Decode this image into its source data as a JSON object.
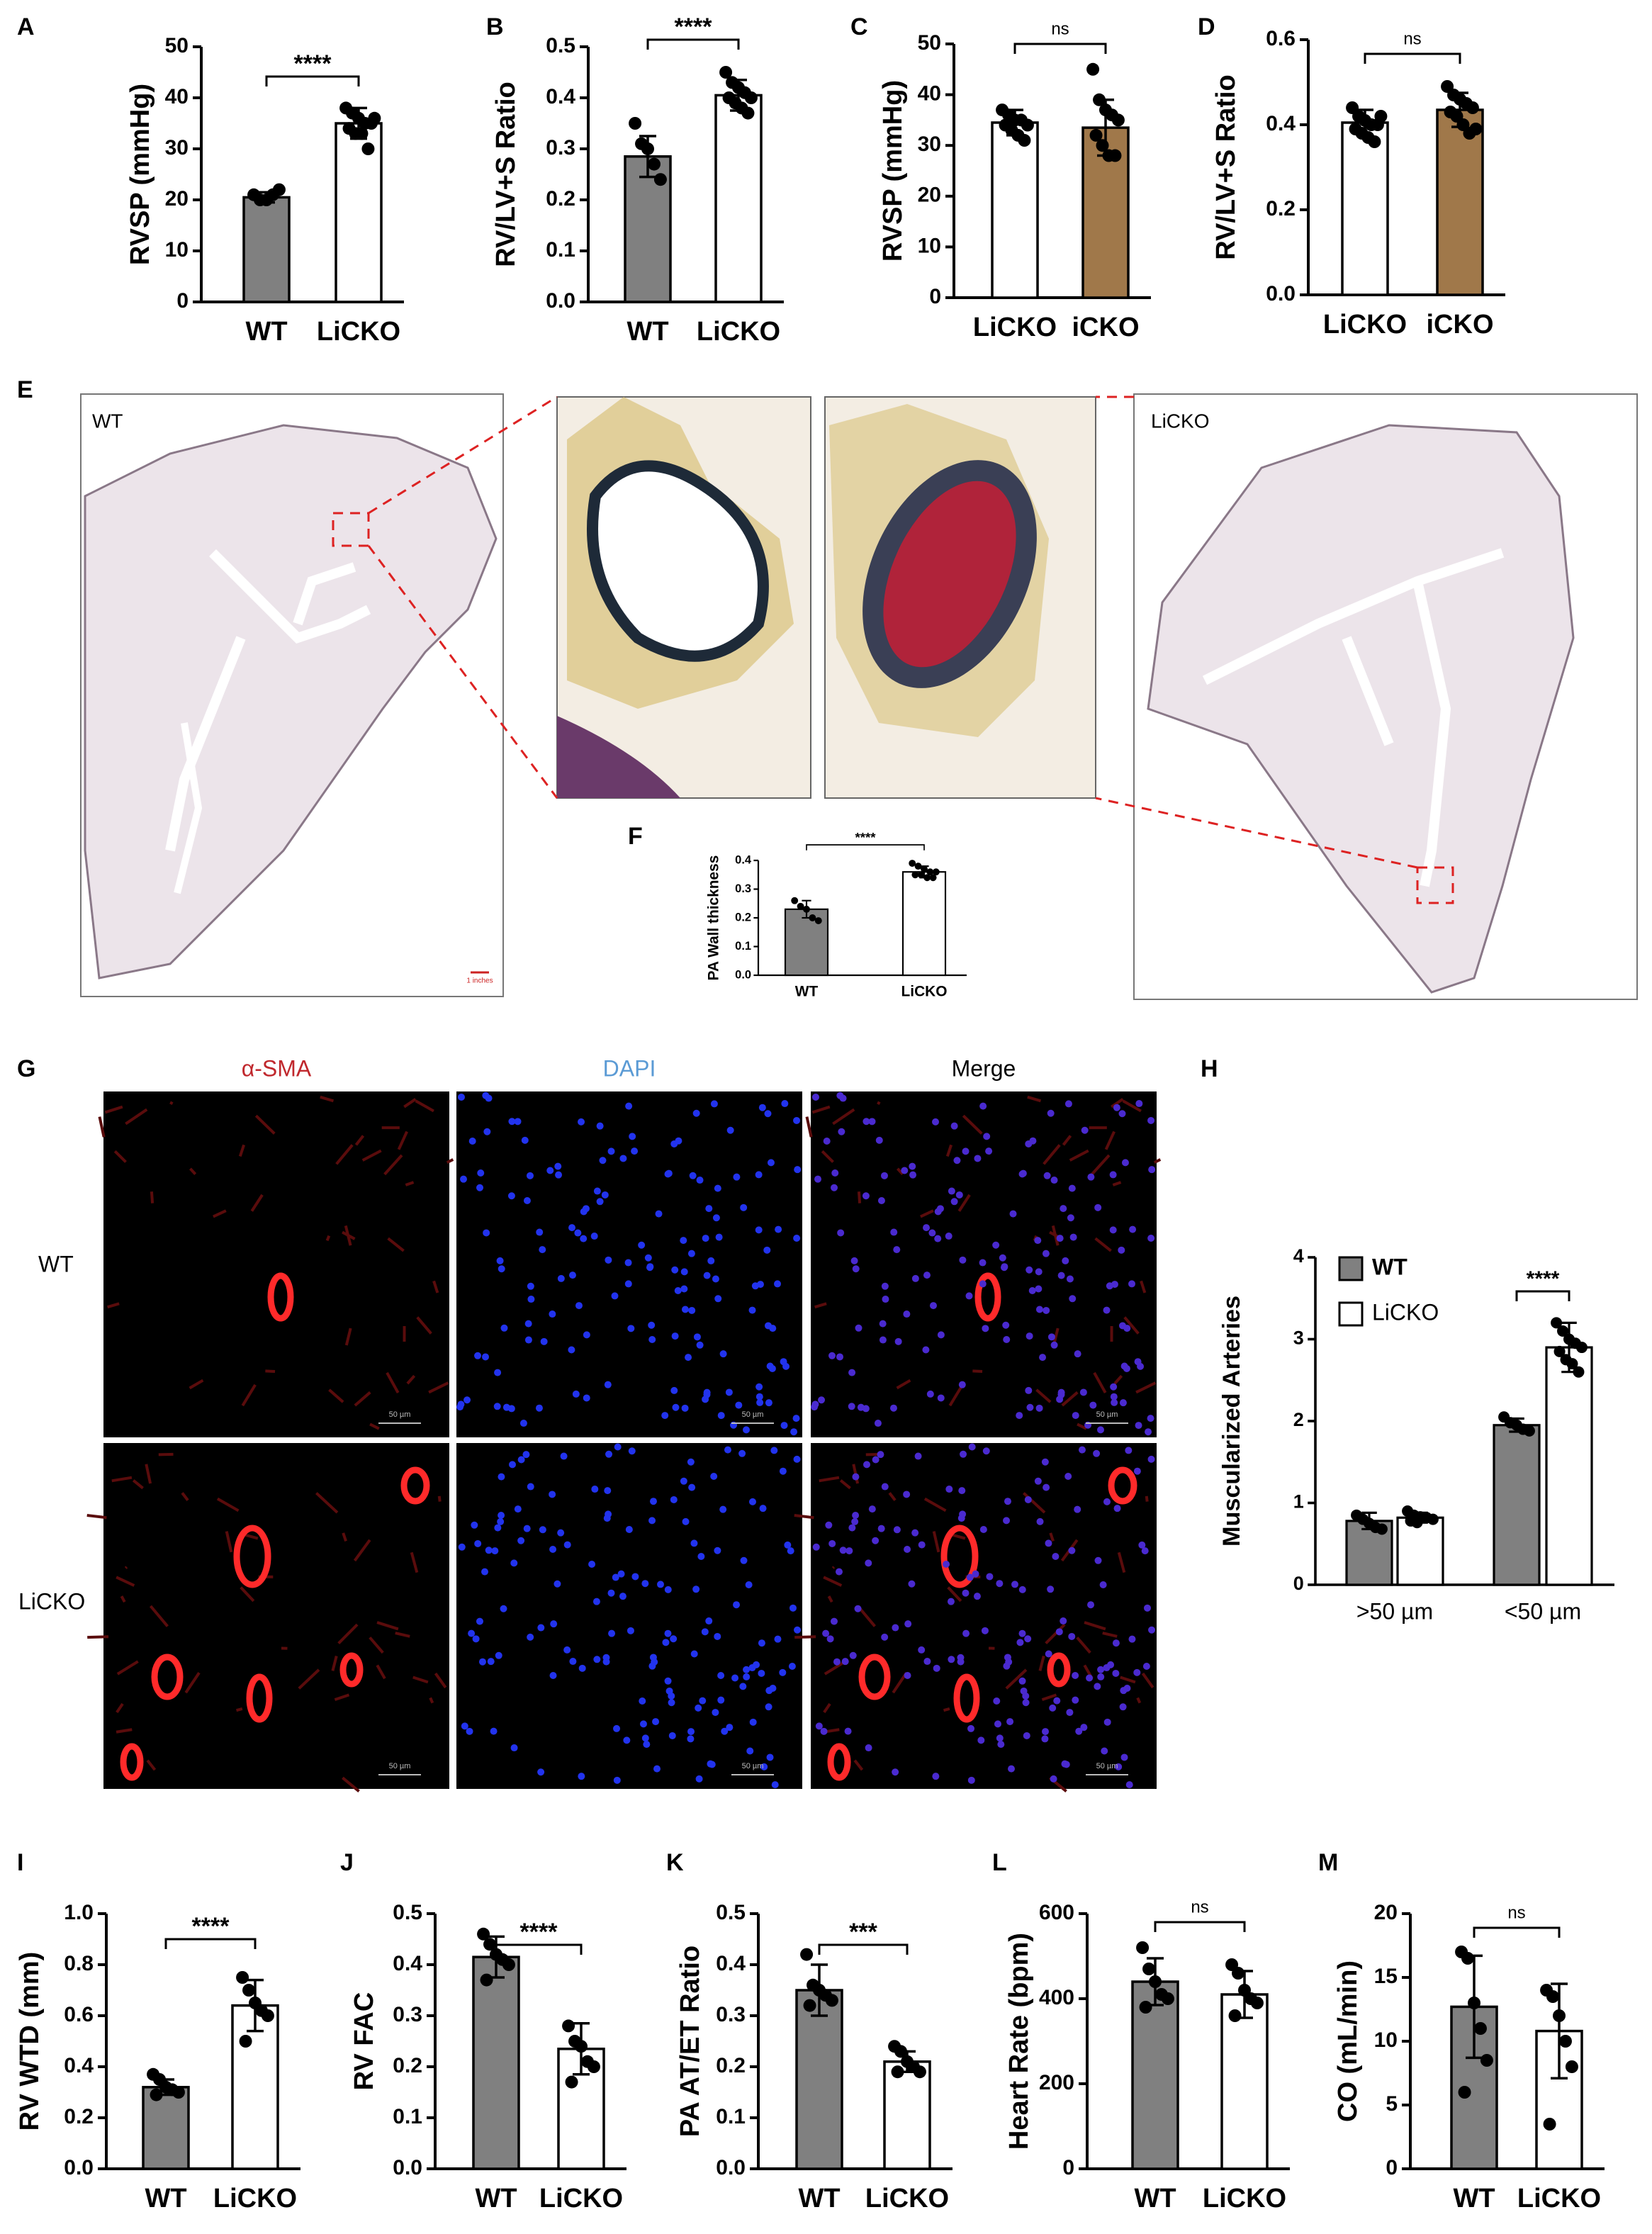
{
  "chart_data": [
    {
      "panel": "A",
      "type": "bar",
      "ylabel": "RVSP (mmHg)",
      "categories": [
        "WT",
        "LiCKO"
      ],
      "values": [
        20.5,
        35
      ],
      "errors": [
        1,
        3
      ],
      "colors": [
        "#808080",
        "#ffffff"
      ],
      "points": [
        [
          21,
          20,
          20,
          21,
          22
        ],
        [
          38,
          37,
          36,
          35,
          35,
          34,
          33,
          33,
          30,
          36
        ]
      ],
      "significance": "****",
      "ylim": [
        0,
        50
      ],
      "yticks": [
        0,
        10,
        20,
        30,
        40,
        50
      ]
    },
    {
      "panel": "B",
      "type": "bar",
      "ylabel": "RV/LV+S Ratio",
      "categories": [
        "WT",
        "LiCKO"
      ],
      "values": [
        0.285,
        0.405
      ],
      "errors": [
        0.04,
        0.03
      ],
      "colors": [
        "#808080",
        "#ffffff"
      ],
      "points": [
        [
          0.35,
          0.31,
          0.3,
          0.27,
          0.24
        ],
        [
          0.45,
          0.43,
          0.42,
          0.41,
          0.4,
          0.4,
          0.39,
          0.38,
          0.37
        ]
      ],
      "significance": "****",
      "ylim": [
        0,
        0.5
      ],
      "yticks": [
        {
          "value": 0,
          "label": "0.0"
        },
        0.1,
        0.2,
        0.3,
        0.4,
        0.5
      ]
    },
    {
      "panel": "C",
      "type": "bar",
      "ylabel": "RVSP (mmHg)",
      "categories": [
        "LiCKO",
        "iCKO"
      ],
      "values": [
        34.5,
        33.5
      ],
      "errors": [
        2.5,
        5.5
      ],
      "colors": [
        "#ffffff",
        "#a0784a"
      ],
      "points": [
        [
          37,
          36,
          35,
          35,
          34,
          34,
          33,
          32,
          31
        ],
        [
          45,
          39,
          37,
          36,
          35,
          32,
          30,
          28,
          28
        ]
      ],
      "significance": "ns",
      "ylim": [
        0,
        50
      ],
      "yticks": [
        0,
        10,
        20,
        30,
        40,
        50
      ]
    },
    {
      "panel": "D",
      "type": "bar",
      "ylabel": "RV/LV+S Ratio",
      "categories": [
        "LiCKO",
        "iCKO"
      ],
      "values": [
        0.405,
        0.435
      ],
      "errors": [
        0.03,
        0.04
      ],
      "colors": [
        "#ffffff",
        "#a0784a"
      ],
      "points": [
        [
          0.44,
          0.42,
          0.41,
          0.4,
          0.4,
          0.39,
          0.38,
          0.37,
          0.36,
          0.42
        ],
        [
          0.49,
          0.47,
          0.46,
          0.45,
          0.44,
          0.43,
          0.42,
          0.4,
          0.38,
          0.39
        ]
      ],
      "significance": "ns",
      "ylim": [
        0,
        0.6
      ],
      "yticks": [
        {
          "value": 0,
          "label": "0.0"
        },
        0.2,
        0.4,
        0.6
      ]
    },
    {
      "panel": "F",
      "type": "bar",
      "ylabel": "PA Wall thickness",
      "categories": [
        "WT",
        "LiCKO"
      ],
      "values": [
        0.23,
        0.36
      ],
      "errors": [
        0.03,
        0.02
      ],
      "colors": [
        "#808080",
        "#ffffff"
      ],
      "points": [
        [
          0.26,
          0.24,
          0.23,
          0.2,
          0.19
        ],
        [
          0.39,
          0.38,
          0.37,
          0.36,
          0.36,
          0.35,
          0.35,
          0.34,
          0.34
        ]
      ],
      "significance": "****",
      "ylim": [
        0,
        0.4
      ],
      "yticks": [
        {
          "value": 0,
          "label": "0.0"
        },
        0.1,
        0.2,
        0.3,
        0.4
      ]
    },
    {
      "panel": "H",
      "type": "grouped_bar",
      "ylabel": "Muscularized Arteries",
      "categories": [
        ">50 µm",
        "<50 µm"
      ],
      "series": [
        {
          "name": "WT",
          "color": "#808080",
          "values": [
            0.78,
            1.95
          ],
          "errors": [
            0.1,
            0.08
          ],
          "points": [
            [
              0.85,
              0.8,
              0.75,
              0.7,
              0.68
            ],
            [
              2.05,
              1.98,
              1.95,
              1.9,
              1.88
            ]
          ]
        },
        {
          "name": "LiCKO",
          "color": "#ffffff",
          "values": [
            0.82,
            2.9
          ],
          "errors": [
            0.06,
            0.3
          ],
          "points": [
            [
              0.9,
              0.85,
              0.83,
              0.82,
              0.8,
              0.78,
              0.76
            ],
            [
              3.2,
              3.1,
              3,
              2.95,
              2.9,
              2.85,
              2.75,
              2.7,
              2.6
            ]
          ]
        }
      ],
      "significance": "****",
      "legend": "upper left",
      "ylim": [
        0,
        4
      ],
      "yticks": [
        0,
        1,
        2,
        3,
        4
      ]
    },
    {
      "panel": "I",
      "type": "bar",
      "ylabel": "RV WTD (mm)",
      "categories": [
        "WT",
        "LiCKO"
      ],
      "values": [
        0.32,
        0.64
      ],
      "errors": [
        0.03,
        0.1
      ],
      "colors": [
        "#808080",
        "#ffffff"
      ],
      "points": [
        [
          0.37,
          0.35,
          0.32,
          0.31,
          0.3,
          0.29
        ],
        [
          0.75,
          0.7,
          0.65,
          0.62,
          0.6,
          0.5
        ]
      ],
      "significance": "****",
      "ylim": [
        0,
        1
      ],
      "yticks": [
        {
          "value": 0,
          "label": "0.0"
        },
        0.2,
        0.4,
        0.6,
        0.8,
        {
          "value": 1,
          "label": "1.0"
        }
      ]
    },
    {
      "panel": "J",
      "type": "bar",
      "ylabel": "RV FAC",
      "categories": [
        "WT",
        "LiCKO"
      ],
      "values": [
        0.415,
        0.235
      ],
      "errors": [
        0.04,
        0.05
      ],
      "colors": [
        "#808080",
        "#ffffff"
      ],
      "points": [
        [
          0.46,
          0.44,
          0.42,
          0.41,
          0.4,
          0.37
        ],
        [
          0.28,
          0.25,
          0.24,
          0.21,
          0.2,
          0.17
        ]
      ],
      "significance": "****",
      "ylim": [
        0,
        0.5
      ],
      "yticks": [
        {
          "value": 0,
          "label": "0.0"
        },
        0.1,
        0.2,
        0.3,
        0.4,
        0.5
      ]
    },
    {
      "panel": "K",
      "type": "bar",
      "ylabel": "PA AT/ET Ratio",
      "categories": [
        "WT",
        "LiCKO"
      ],
      "values": [
        0.35,
        0.21
      ],
      "errors": [
        0.05,
        0.02
      ],
      "colors": [
        "#808080",
        "#ffffff"
      ],
      "points": [
        [
          0.42,
          0.36,
          0.35,
          0.34,
          0.33,
          0.32
        ],
        [
          0.24,
          0.23,
          0.21,
          0.2,
          0.19,
          0.19
        ]
      ],
      "significance": "***",
      "ylim": [
        0,
        0.5
      ],
      "yticks": [
        {
          "value": 0,
          "label": "0.0"
        },
        0.1,
        0.2,
        0.3,
        0.4,
        0.5
      ]
    },
    {
      "panel": "L",
      "type": "bar",
      "ylabel": "Heart Rate (bpm)",
      "categories": [
        "WT",
        "LiCKO"
      ],
      "values": [
        440,
        410
      ],
      "errors": [
        55,
        55
      ],
      "colors": [
        "#808080",
        "#ffffff"
      ],
      "points": [
        [
          520,
          470,
          440,
          410,
          400,
          380
        ],
        [
          480,
          460,
          420,
          400,
          390,
          360
        ]
      ],
      "significance": "ns",
      "ylim": [
        0,
        600
      ],
      "yticks": [
        0,
        200,
        400,
        600
      ]
    },
    {
      "panel": "M",
      "type": "bar",
      "ylabel": "CO (mL/min)",
      "categories": [
        "WT",
        "LiCKO"
      ],
      "values": [
        12.7,
        10.8
      ],
      "errors": [
        4,
        3.7
      ],
      "colors": [
        "#808080",
        "#ffffff"
      ],
      "points": [
        [
          17,
          16.5,
          13,
          11,
          8.5,
          6
        ],
        [
          14,
          13.5,
          12,
          10,
          8,
          3.5
        ]
      ],
      "significance": "ns",
      "ylim": [
        0,
        20
      ],
      "yticks": [
        0,
        5,
        10,
        15,
        20
      ]
    }
  ],
  "panel_e": {
    "panel": "E",
    "labels": [
      "WT",
      "LiCKO"
    ],
    "scale_bar": "1 inches"
  },
  "panel_g": {
    "panel": "G",
    "columns": [
      "α-SMA",
      "DAPI",
      "Merge"
    ],
    "rows": [
      "WT",
      "LiCKO"
    ],
    "scale_bar": "50 µm"
  }
}
